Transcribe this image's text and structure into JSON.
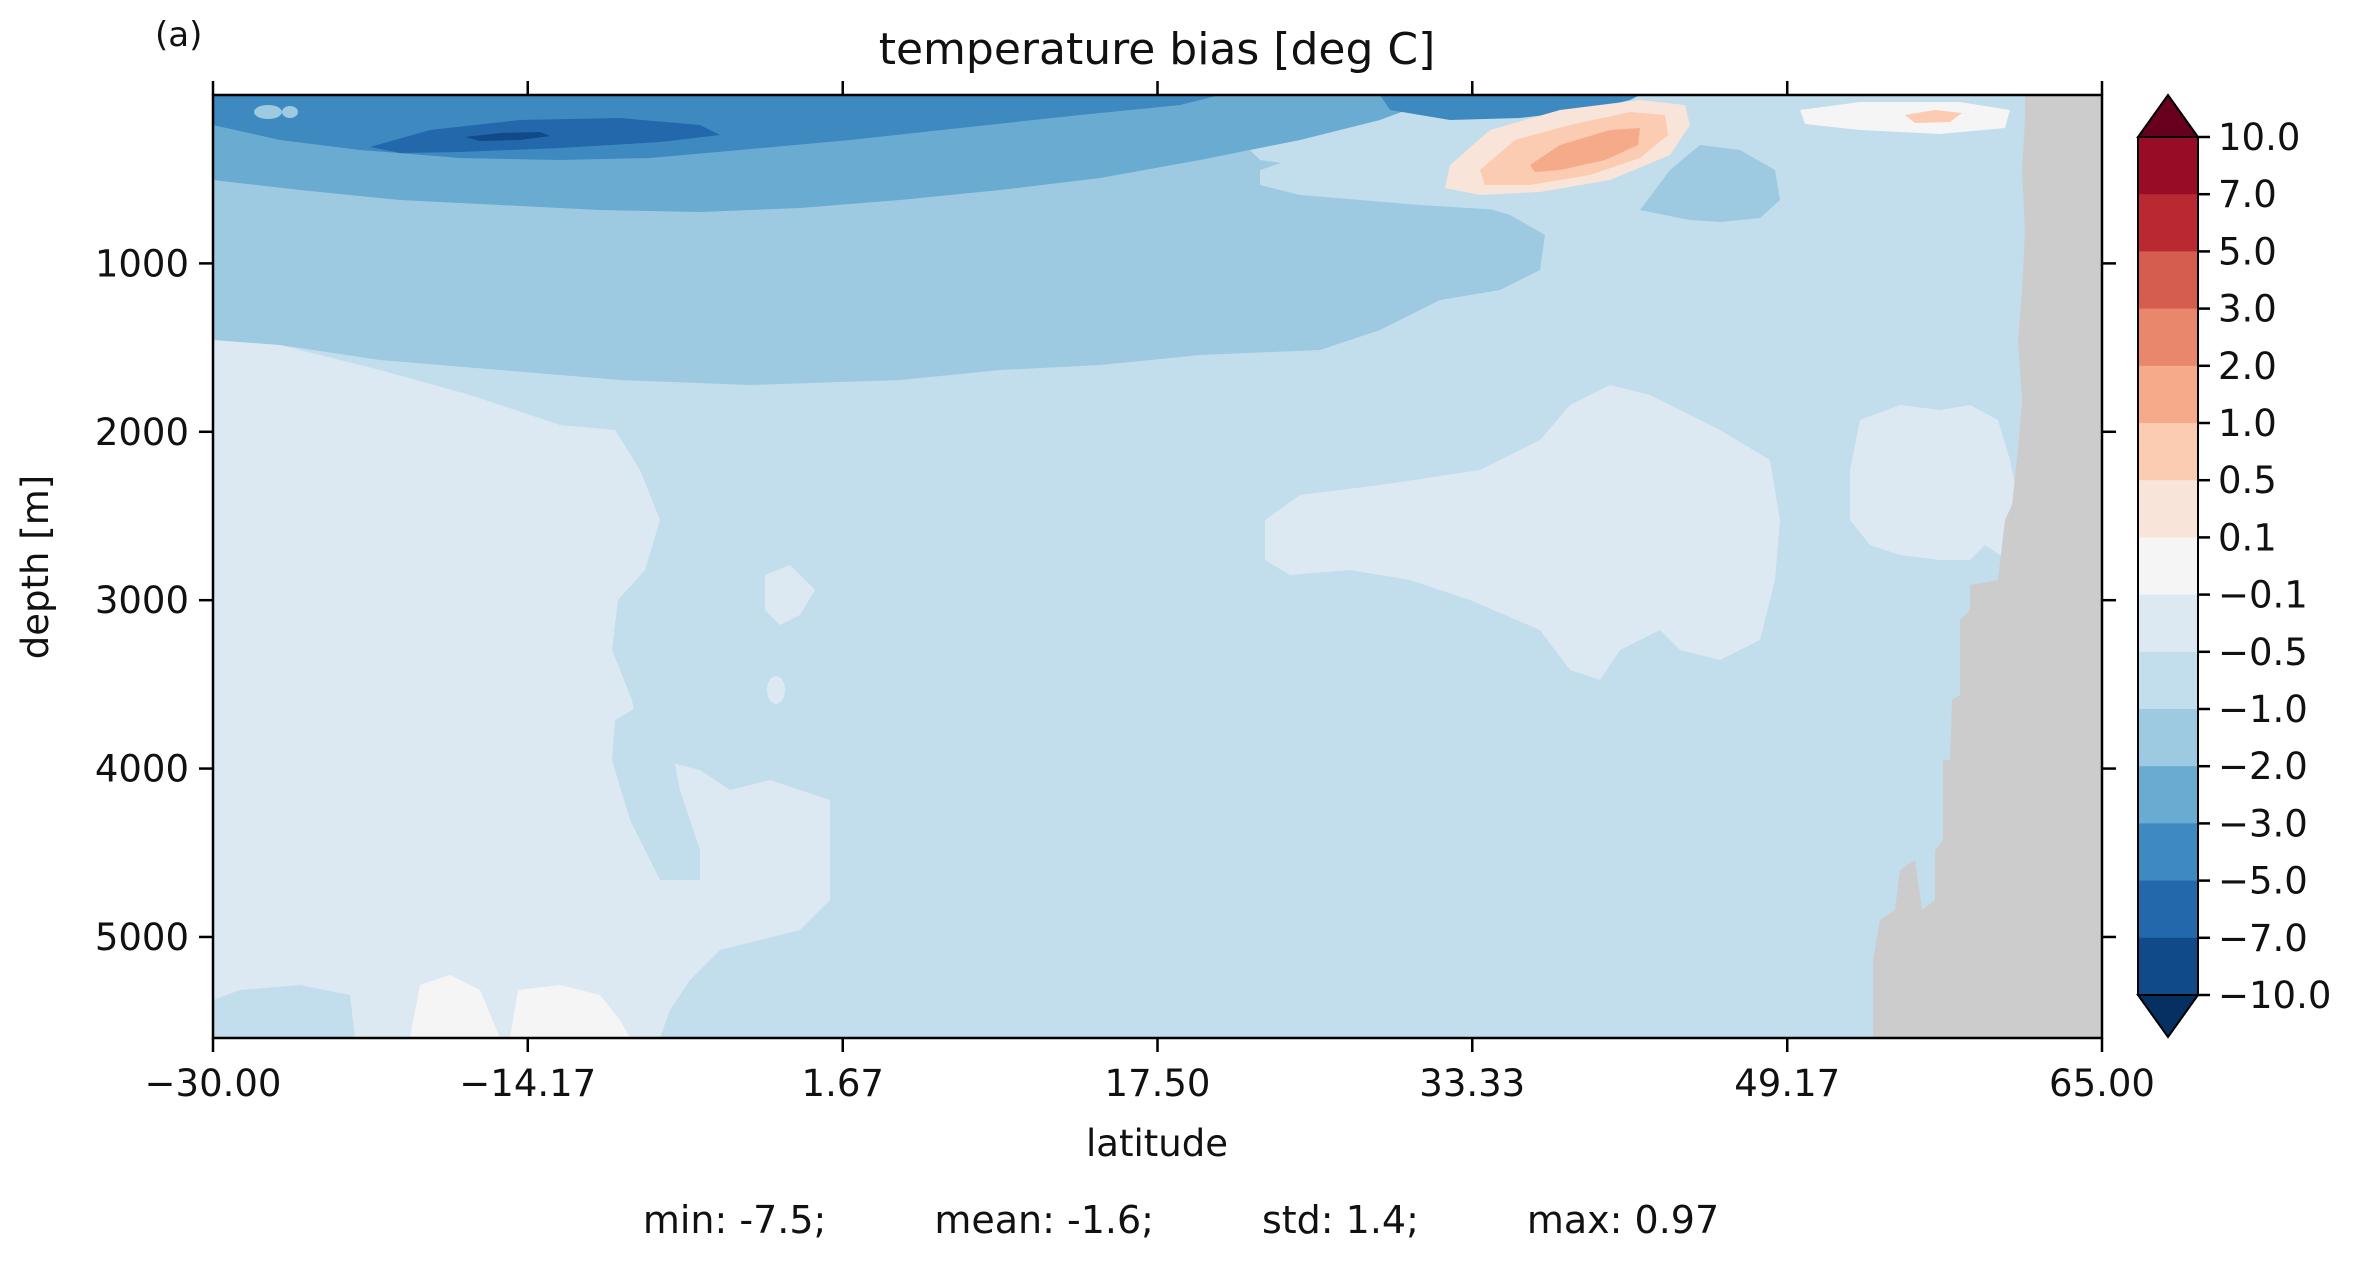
{
  "panel_label": "(a)",
  "chart_data": {
    "type": "heatmap",
    "title": "temperature bias [deg C]",
    "xlabel": "latitude",
    "ylabel": "depth [m]",
    "xlim": [
      -30,
      65
    ],
    "ylim": [
      5600,
      0
    ],
    "x_ticks": [
      "−30.00",
      "−14.17",
      "1.67",
      "17.50",
      "33.33",
      "49.17",
      "65.00"
    ],
    "x_tick_values": [
      -30.0,
      -14.17,
      1.67,
      17.5,
      33.33,
      49.17,
      65.0
    ],
    "y_ticks": [
      "1000",
      "2000",
      "3000",
      "4000",
      "5000"
    ],
    "y_tick_values": [
      1000,
      2000,
      3000,
      4000,
      5000
    ],
    "colorbar": {
      "levels": [
        "10.0",
        "7.0",
        "5.0",
        "3.0",
        "2.0",
        "1.0",
        "0.5",
        "0.1",
        "−0.1",
        "−0.5",
        "−1.0",
        "−2.0",
        "−3.0",
        "−5.0",
        "−7.0",
        "−10.0"
      ],
      "colors": [
        "#67001f",
        "#980c26",
        "#ba2832",
        "#d55d4f",
        "#e8876c",
        "#f5ab8a",
        "#fbcbb2",
        "#f9e4d9",
        "#f5f5f5",
        "#dde9f2",
        "#c2ddec",
        "#9dcae1",
        "#6aabd2",
        "#3e89c0",
        "#2368aa",
        "#114a88",
        "#053061"
      ],
      "extend": "both"
    },
    "land_color": "#cccccc",
    "stats": {
      "min": "min: -7.5;",
      "mean": "mean: -1.6;",
      "std": "std: 1.4;",
      "max": "max: 0.97"
    }
  }
}
